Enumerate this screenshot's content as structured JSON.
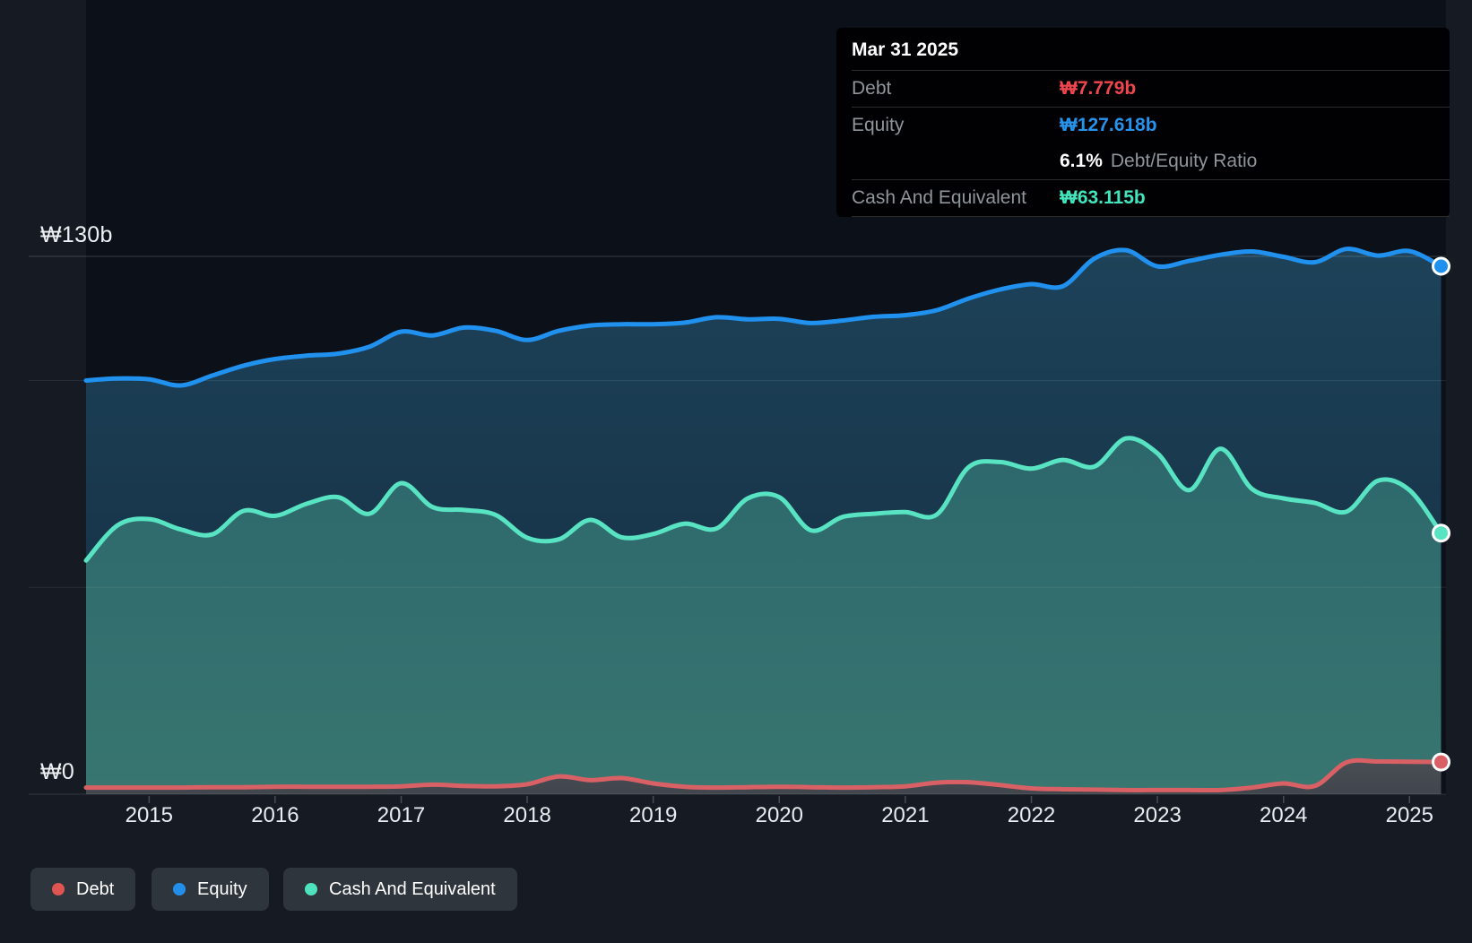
{
  "y_axis": {
    "top_label": "₩130b",
    "zero_label": "₩0"
  },
  "x_axis": {
    "years": [
      "2015",
      "2016",
      "2017",
      "2018",
      "2019",
      "2020",
      "2021",
      "2022",
      "2023",
      "2024",
      "2025"
    ]
  },
  "tooltip": {
    "date": "Mar 31 2025",
    "debt_label": "Debt",
    "debt_value": "₩7.779b",
    "equity_label": "Equity",
    "equity_value": "₩127.618b",
    "ratio_value": "6.1%",
    "ratio_label": "Debt/Equity Ratio",
    "cash_label": "Cash And Equivalent",
    "cash_value": "₩63.115b"
  },
  "legend": {
    "items": [
      {
        "label": "Debt",
        "color": "#e05452"
      },
      {
        "label": "Equity",
        "color": "#2290ea"
      },
      {
        "label": "Cash And Equivalent",
        "color": "#50e2bf"
      }
    ]
  },
  "colors": {
    "debt_value": "#f0464d",
    "equity_value": "#2693ec",
    "cash_value": "#43e5bd",
    "debt_line": "#d96065",
    "equity_line": "#2191ef",
    "cash_line": "#58e3c2",
    "tooltip_bg": "#010103",
    "background": "#161b23"
  },
  "chart_data": {
    "type": "area",
    "title": "",
    "xlabel": "",
    "ylabel": "₩ billions",
    "unit": "₩b",
    "xlim": [
      2014.5,
      2025.25
    ],
    "ylim": [
      0,
      130
    ],
    "x_ticks": [
      2015,
      2016,
      2017,
      2018,
      2019,
      2020,
      2021,
      2022,
      2023,
      2024,
      2025
    ],
    "y_gridlines": [
      0,
      50,
      100,
      130
    ],
    "y_axis_labels": {
      "0": "₩0",
      "130": "₩130b"
    },
    "grid": true,
    "legend_position": "bottom",
    "end_markers": true,
    "x": [
      2014.5,
      2014.75,
      2015,
      2015.25,
      2015.5,
      2015.75,
      2016,
      2016.25,
      2016.5,
      2016.75,
      2017,
      2017.25,
      2017.5,
      2017.75,
      2018,
      2018.25,
      2018.5,
      2018.75,
      2019,
      2019.25,
      2019.5,
      2019.75,
      2020,
      2020.25,
      2020.5,
      2020.75,
      2021,
      2021.25,
      2021.5,
      2021.75,
      2022,
      2022.25,
      2022.5,
      2022.75,
      2023,
      2023.25,
      2023.5,
      2023.75,
      2024,
      2024.25,
      2024.5,
      2024.75,
      2025,
      2025.25
    ],
    "series": [
      {
        "name": "Debt",
        "color": "#d96065",
        "values": [
          1.6,
          1.6,
          1.6,
          1.6,
          1.7,
          1.7,
          1.8,
          1.8,
          1.8,
          1.8,
          1.9,
          2.3,
          2.0,
          1.9,
          2.4,
          4.3,
          3.4,
          3.9,
          2.6,
          1.8,
          1.6,
          1.7,
          1.8,
          1.7,
          1.6,
          1.7,
          1.9,
          2.8,
          2.9,
          2.2,
          1.4,
          1.2,
          1.1,
          1.0,
          1.0,
          1.0,
          1.0,
          1.6,
          2.6,
          2.0,
          7.7,
          7.9,
          7.85,
          7.779
        ]
      },
      {
        "name": "Equity",
        "color": "#2191ef",
        "values": [
          100.0,
          100.5,
          100.3,
          98.8,
          101.2,
          103.6,
          105.2,
          106.0,
          106.5,
          108.2,
          111.8,
          110.9,
          112.8,
          112.0,
          109.8,
          112.0,
          113.3,
          113.6,
          113.6,
          114.0,
          115.3,
          114.8,
          114.9,
          113.9,
          114.5,
          115.4,
          115.8,
          117.0,
          119.8,
          122.0,
          123.3,
          122.8,
          129.5,
          131.5,
          127.6,
          128.9,
          130.4,
          131.2,
          129.9,
          128.6,
          131.8,
          130.2,
          131.3,
          127.618
        ]
      },
      {
        "name": "Cash And Equivalent",
        "color": "#58e3c2",
        "values": [
          56.5,
          65.0,
          66.5,
          64.0,
          62.8,
          68.5,
          67.3,
          70.2,
          71.8,
          67.8,
          75.2,
          69.4,
          68.7,
          67.5,
          62.0,
          61.6,
          66.3,
          62.1,
          62.9,
          65.4,
          64.2,
          71.5,
          71.8,
          63.8,
          67.0,
          67.8,
          68.2,
          67.6,
          79.0,
          80.3,
          78.7,
          80.8,
          79.2,
          86.0,
          82.4,
          73.5,
          83.5,
          73.8,
          71.5,
          70.4,
          68.3,
          75.8,
          73.5,
          63.115
        ]
      }
    ]
  }
}
